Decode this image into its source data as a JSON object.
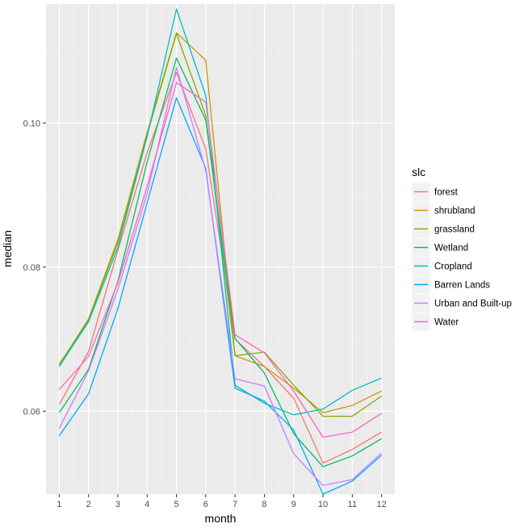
{
  "chart_data": {
    "type": "line",
    "title": "",
    "xlabel": "month",
    "ylabel": "median",
    "x": [
      1,
      2,
      3,
      4,
      5,
      6,
      7,
      8,
      9,
      10,
      11,
      12
    ],
    "x_tick_labels": [
      "1",
      "2",
      "3",
      "4",
      "5",
      "6",
      "7",
      "8",
      "9",
      "10",
      "11",
      "12"
    ],
    "xlim": [
      0.55,
      12.45
    ],
    "ylim": [
      0.0485,
      0.1165
    ],
    "y_major_ticks": [
      0.06,
      0.08,
      0.1
    ],
    "y_tick_labels": [
      "0.06",
      "0.08",
      "0.10"
    ],
    "y_minor_ticks": [
      0.05,
      0.07,
      0.09,
      0.11
    ],
    "grid": true,
    "legend_title": "slc",
    "legend_position": "right",
    "series": [
      {
        "name": "forest",
        "color": "#F8766D",
        "values": [
          0.0609,
          0.0683,
          0.0823,
          0.0959,
          0.107,
          0.0964,
          0.07,
          0.0662,
          0.0618,
          0.0528,
          0.0547,
          0.0571
        ]
      },
      {
        "name": "shrubland",
        "color": "#CD9600",
        "values": [
          0.0664,
          0.0728,
          0.0838,
          0.0987,
          0.1125,
          0.1087,
          0.0677,
          0.0662,
          0.0632,
          0.0598,
          0.0608,
          0.0628
        ]
      },
      {
        "name": "grassland",
        "color": "#7CAE00",
        "values": [
          0.0665,
          0.0726,
          0.0834,
          0.0984,
          0.1124,
          0.101,
          0.0677,
          0.0682,
          0.0636,
          0.0593,
          0.0593,
          0.0621
        ]
      },
      {
        "name": "Wetland",
        "color": "#00BE67",
        "values": [
          0.0598,
          0.0658,
          0.078,
          0.0946,
          0.109,
          0.1004,
          0.0701,
          0.0653,
          0.0569,
          0.0523,
          0.0538,
          0.0562
        ]
      },
      {
        "name": "Cropland",
        "color": "#00BFC4",
        "values": [
          0.0662,
          0.0724,
          0.0827,
          0.0981,
          0.1158,
          0.1038,
          0.0636,
          0.0611,
          0.0595,
          0.0603,
          0.0629,
          0.0646
        ]
      },
      {
        "name": "Barren Lands",
        "color": "#00A9FF",
        "values": [
          0.0566,
          0.0624,
          0.0742,
          0.0889,
          0.1035,
          0.0937,
          0.0632,
          0.0614,
          0.0574,
          0.0485,
          0.0503,
          0.0539
        ]
      },
      {
        "name": "Urban and Built-up",
        "color": "#C77CFF",
        "values": [
          0.0576,
          0.0656,
          0.0769,
          0.0902,
          0.1077,
          0.0934,
          0.0645,
          0.0635,
          0.0541,
          0.0497,
          0.0505,
          0.0542
        ]
      },
      {
        "name": "Water",
        "color": "#FF61C3",
        "values": [
          0.063,
          0.0676,
          0.0778,
          0.0912,
          0.1056,
          0.1029,
          0.0706,
          0.0681,
          0.0628,
          0.0564,
          0.0571,
          0.0597
        ]
      }
    ]
  }
}
